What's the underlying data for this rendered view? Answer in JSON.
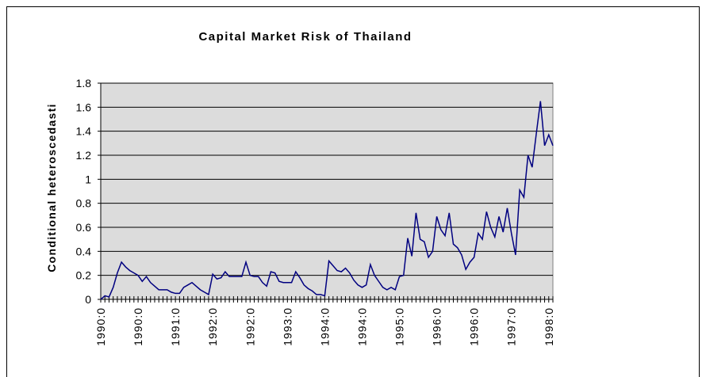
{
  "chart_data": {
    "type": "line",
    "title": "Capital Market Risk of Thailand",
    "y_label": "Conditional heteroscedasti",
    "categories": [
      "1990:0",
      null,
      null,
      null,
      null,
      null,
      null,
      null,
      null,
      "1990:0",
      null,
      null,
      null,
      null,
      null,
      null,
      null,
      null,
      "1991:0",
      null,
      null,
      null,
      null,
      null,
      null,
      null,
      null,
      "1992:0",
      null,
      null,
      null,
      null,
      null,
      null,
      null,
      null,
      "1992:0",
      null,
      null,
      null,
      null,
      null,
      null,
      null,
      null,
      "1993:0",
      null,
      null,
      null,
      null,
      null,
      null,
      null,
      null,
      "1994:0",
      null,
      null,
      null,
      null,
      null,
      null,
      null,
      null,
      "1994:0",
      null,
      null,
      null,
      null,
      null,
      null,
      null,
      null,
      "1995:0",
      null,
      null,
      null,
      null,
      null,
      null,
      null,
      null,
      "1996:0",
      null,
      null,
      null,
      null,
      null,
      null,
      null,
      null,
      "1996:0",
      null,
      null,
      null,
      null,
      null,
      null,
      null,
      null,
      "1997:0",
      null,
      null,
      null,
      null,
      null,
      null,
      null,
      null,
      "1998:0",
      null
    ],
    "series": [
      {
        "color": "#000080",
        "values": [
          0,
          0.03,
          0.02,
          0.1,
          0.22,
          0.31,
          0.27,
          0.24,
          0.22,
          0.2,
          0.15,
          0.19,
          0.14,
          0.11,
          0.08,
          0.08,
          0.08,
          0.06,
          0.05,
          0.05,
          0.1,
          0.12,
          0.14,
          0.11,
          0.08,
          0.06,
          0.04,
          0.21,
          0.17,
          0.18,
          0.23,
          0.19,
          0.19,
          0.19,
          0.19,
          0.31,
          0.2,
          0.19,
          0.19,
          0.14,
          0.11,
          0.23,
          0.22,
          0.15,
          0.14,
          0.14,
          0.14,
          0.23,
          0.18,
          0.12,
          0.09,
          0.07,
          0.04,
          0.04,
          0.03,
          0.32,
          0.28,
          0.24,
          0.23,
          0.26,
          0.22,
          0.16,
          0.12,
          0.1,
          0.12,
          0.29,
          0.2,
          0.15,
          0.1,
          0.08,
          0.1,
          0.08,
          0.19,
          0.2,
          0.51,
          0.36,
          0.72,
          0.5,
          0.48,
          0.35,
          0.4,
          0.69,
          0.58,
          0.53,
          0.72,
          0.46,
          0.43,
          0.37,
          0.25,
          0.31,
          0.35,
          0.55,
          0.5,
          0.73,
          0.6,
          0.52,
          0.69,
          0.56,
          0.76,
          0.55,
          0.37,
          0.91,
          0.85,
          1.2,
          1.1,
          1.38,
          1.65,
          1.28,
          1.37,
          1.28
        ]
      }
    ],
    "ylim": [
      0,
      1.8
    ],
    "yticks": [
      0,
      0.2,
      0.4,
      0.6,
      0.8,
      1,
      1.2,
      1.4,
      1.6,
      1.8
    ],
    "grid": true
  }
}
